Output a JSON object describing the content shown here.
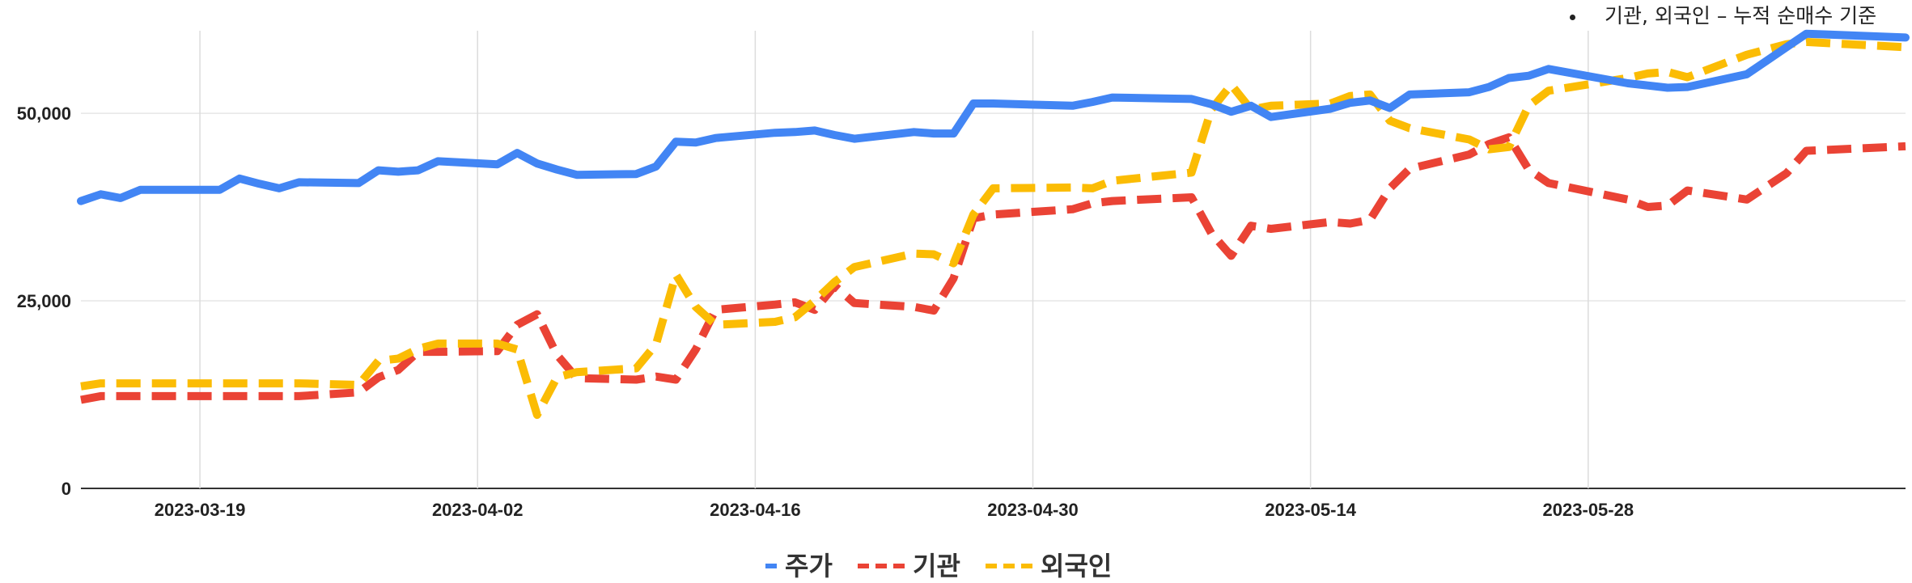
{
  "note": {
    "text": "기관, 외국인 – 누적 순매수 기준"
  },
  "chart_data": {
    "type": "line",
    "title": "",
    "xlabel": "",
    "ylabel": "",
    "xlim": [
      "2023-03-13",
      "2023-06-13"
    ],
    "ylim": [
      0,
      61000
    ],
    "yticks": [
      0,
      25000,
      50000
    ],
    "ytick_labels": [
      "0",
      "25,000",
      "50,000"
    ],
    "xticks": [
      "2023-03-19",
      "2023-04-02",
      "2023-04-16",
      "2023-04-30",
      "2023-05-14",
      "2023-05-28"
    ],
    "grid": true,
    "legend": "bottom-center",
    "series": [
      {
        "name": "주가",
        "color": "#4285F4",
        "style": "solid",
        "points": [
          [
            "2023-03-13",
            38300
          ],
          [
            "2023-03-14",
            39200
          ],
          [
            "2023-03-15",
            38700
          ],
          [
            "2023-03-16",
            39800
          ],
          [
            "2023-03-17",
            39800
          ],
          [
            "2023-03-20",
            39800
          ],
          [
            "2023-03-21",
            41300
          ],
          [
            "2023-03-22",
            40600
          ],
          [
            "2023-03-23",
            40000
          ],
          [
            "2023-03-24",
            40800
          ],
          [
            "2023-03-27",
            40700
          ],
          [
            "2023-03-28",
            42400
          ],
          [
            "2023-03-29",
            42200
          ],
          [
            "2023-03-30",
            42400
          ],
          [
            "2023-03-31",
            43600
          ],
          [
            "2023-04-03",
            43200
          ],
          [
            "2023-04-04",
            44700
          ],
          [
            "2023-04-05",
            43300
          ],
          [
            "2023-04-06",
            42500
          ],
          [
            "2023-04-07",
            41800
          ],
          [
            "2023-04-10",
            41900
          ],
          [
            "2023-04-11",
            42900
          ],
          [
            "2023-04-12",
            46200
          ],
          [
            "2023-04-13",
            46100
          ],
          [
            "2023-04-14",
            46700
          ],
          [
            "2023-04-17",
            47400
          ],
          [
            "2023-04-18",
            47500
          ],
          [
            "2023-04-19",
            47700
          ],
          [
            "2023-04-20",
            47100
          ],
          [
            "2023-04-21",
            46600
          ],
          [
            "2023-04-24",
            47500
          ],
          [
            "2023-04-25",
            47300
          ],
          [
            "2023-04-26",
            47300
          ],
          [
            "2023-04-27",
            51300
          ],
          [
            "2023-04-28",
            51300
          ],
          [
            "2023-05-02",
            51000
          ],
          [
            "2023-05-03",
            51500
          ],
          [
            "2023-05-04",
            52100
          ],
          [
            "2023-05-08",
            51900
          ],
          [
            "2023-05-09",
            51200
          ],
          [
            "2023-05-10",
            50200
          ],
          [
            "2023-05-11",
            51000
          ],
          [
            "2023-05-12",
            49500
          ],
          [
            "2023-05-15",
            50600
          ],
          [
            "2023-05-16",
            51400
          ],
          [
            "2023-05-17",
            51700
          ],
          [
            "2023-05-18",
            50700
          ],
          [
            "2023-05-19",
            52500
          ],
          [
            "2023-05-22",
            52800
          ],
          [
            "2023-05-23",
            53500
          ],
          [
            "2023-05-24",
            54700
          ],
          [
            "2023-05-25",
            55000
          ],
          [
            "2023-05-26",
            55900
          ],
          [
            "2023-05-30",
            54000
          ],
          [
            "2023-05-31",
            53700
          ],
          [
            "2023-06-01",
            53400
          ],
          [
            "2023-06-02",
            53500
          ],
          [
            "2023-06-05",
            55200
          ],
          [
            "2023-06-06",
            57000
          ],
          [
            "2023-06-07",
            58800
          ],
          [
            "2023-06-08",
            60600
          ],
          [
            "2023-06-09",
            60500
          ],
          [
            "2023-06-13",
            60100
          ]
        ]
      },
      {
        "name": "기관",
        "color": "#EA4335",
        "style": "dashed",
        "points": [
          [
            "2023-03-13",
            11800
          ],
          [
            "2023-03-14",
            12300
          ],
          [
            "2023-03-24",
            12300
          ],
          [
            "2023-03-27",
            12800
          ],
          [
            "2023-03-28",
            14800
          ],
          [
            "2023-03-29",
            15800
          ],
          [
            "2023-03-30",
            18200
          ],
          [
            "2023-03-31",
            18200
          ],
          [
            "2023-04-03",
            18300
          ],
          [
            "2023-04-04",
            21800
          ],
          [
            "2023-04-05",
            23200
          ],
          [
            "2023-04-06",
            17800
          ],
          [
            "2023-04-07",
            14700
          ],
          [
            "2023-04-10",
            14500
          ],
          [
            "2023-04-11",
            14900
          ],
          [
            "2023-04-12",
            14500
          ],
          [
            "2023-04-13",
            18500
          ],
          [
            "2023-04-14",
            23800
          ],
          [
            "2023-04-17",
            24500
          ],
          [
            "2023-04-18",
            24800
          ],
          [
            "2023-04-19",
            23800
          ],
          [
            "2023-04-20",
            27000
          ],
          [
            "2023-04-21",
            24700
          ],
          [
            "2023-04-24",
            24200
          ],
          [
            "2023-04-25",
            23700
          ],
          [
            "2023-04-26",
            28000
          ],
          [
            "2023-04-27",
            36000
          ],
          [
            "2023-04-28",
            36500
          ],
          [
            "2023-05-02",
            37200
          ],
          [
            "2023-05-03",
            38000
          ],
          [
            "2023-05-04",
            38300
          ],
          [
            "2023-05-08",
            38800
          ],
          [
            "2023-05-09",
            34000
          ],
          [
            "2023-05-10",
            31000
          ],
          [
            "2023-05-11",
            35000
          ],
          [
            "2023-05-12",
            34600
          ],
          [
            "2023-05-15",
            35500
          ],
          [
            "2023-05-16",
            35300
          ],
          [
            "2023-05-17",
            35800
          ],
          [
            "2023-05-18",
            40000
          ],
          [
            "2023-05-19",
            42600
          ],
          [
            "2023-05-22",
            44500
          ],
          [
            "2023-05-23",
            45900
          ],
          [
            "2023-05-24",
            46800
          ],
          [
            "2023-05-25",
            42500
          ],
          [
            "2023-05-26",
            40700
          ],
          [
            "2023-05-30",
            38500
          ],
          [
            "2023-05-31",
            37500
          ],
          [
            "2023-06-01",
            37700
          ],
          [
            "2023-06-02",
            39700
          ],
          [
            "2023-06-05",
            38500
          ],
          [
            "2023-06-07",
            42000
          ],
          [
            "2023-06-08",
            45000
          ],
          [
            "2023-06-13",
            45600
          ]
        ]
      },
      {
        "name": "외국인",
        "color": "#FBBC04",
        "style": "dashed",
        "points": [
          [
            "2023-03-13",
            13600
          ],
          [
            "2023-03-14",
            14000
          ],
          [
            "2023-03-24",
            14000
          ],
          [
            "2023-03-27",
            13800
          ],
          [
            "2023-03-28",
            17000
          ],
          [
            "2023-03-29",
            17300
          ],
          [
            "2023-03-30",
            18600
          ],
          [
            "2023-03-31",
            19300
          ],
          [
            "2023-04-03",
            19300
          ],
          [
            "2023-04-04",
            18500
          ],
          [
            "2023-04-05",
            9800
          ],
          [
            "2023-04-06",
            14800
          ],
          [
            "2023-04-07",
            15500
          ],
          [
            "2023-04-10",
            16000
          ],
          [
            "2023-04-11",
            19200
          ],
          [
            "2023-04-12",
            28500
          ],
          [
            "2023-04-13",
            24200
          ],
          [
            "2023-04-14",
            21800
          ],
          [
            "2023-04-17",
            22200
          ],
          [
            "2023-04-18",
            22800
          ],
          [
            "2023-04-19",
            25000
          ],
          [
            "2023-04-20",
            27500
          ],
          [
            "2023-04-21",
            29500
          ],
          [
            "2023-04-24",
            31300
          ],
          [
            "2023-04-25",
            31200
          ],
          [
            "2023-04-26",
            30000
          ],
          [
            "2023-04-27",
            36500
          ],
          [
            "2023-04-28",
            40000
          ],
          [
            "2023-05-02",
            40100
          ],
          [
            "2023-05-03",
            40000
          ],
          [
            "2023-05-04",
            41000
          ],
          [
            "2023-05-08",
            42100
          ],
          [
            "2023-05-09",
            50500
          ],
          [
            "2023-05-10",
            53800
          ],
          [
            "2023-05-11",
            50500
          ],
          [
            "2023-05-12",
            51000
          ],
          [
            "2023-05-15",
            51300
          ],
          [
            "2023-05-16",
            52300
          ],
          [
            "2023-05-17",
            52500
          ],
          [
            "2023-05-18",
            49000
          ],
          [
            "2023-05-19",
            48000
          ],
          [
            "2023-05-22",
            46500
          ],
          [
            "2023-05-23",
            45200
          ],
          [
            "2023-05-24",
            45500
          ],
          [
            "2023-05-25",
            51000
          ],
          [
            "2023-05-26",
            53000
          ],
          [
            "2023-05-30",
            54700
          ],
          [
            "2023-05-31",
            55300
          ],
          [
            "2023-06-01",
            55500
          ],
          [
            "2023-06-02",
            54800
          ],
          [
            "2023-06-05",
            57800
          ],
          [
            "2023-06-06",
            58500
          ],
          [
            "2023-06-07",
            59200
          ],
          [
            "2023-06-08",
            59500
          ],
          [
            "2023-06-13",
            58800
          ]
        ]
      }
    ]
  }
}
